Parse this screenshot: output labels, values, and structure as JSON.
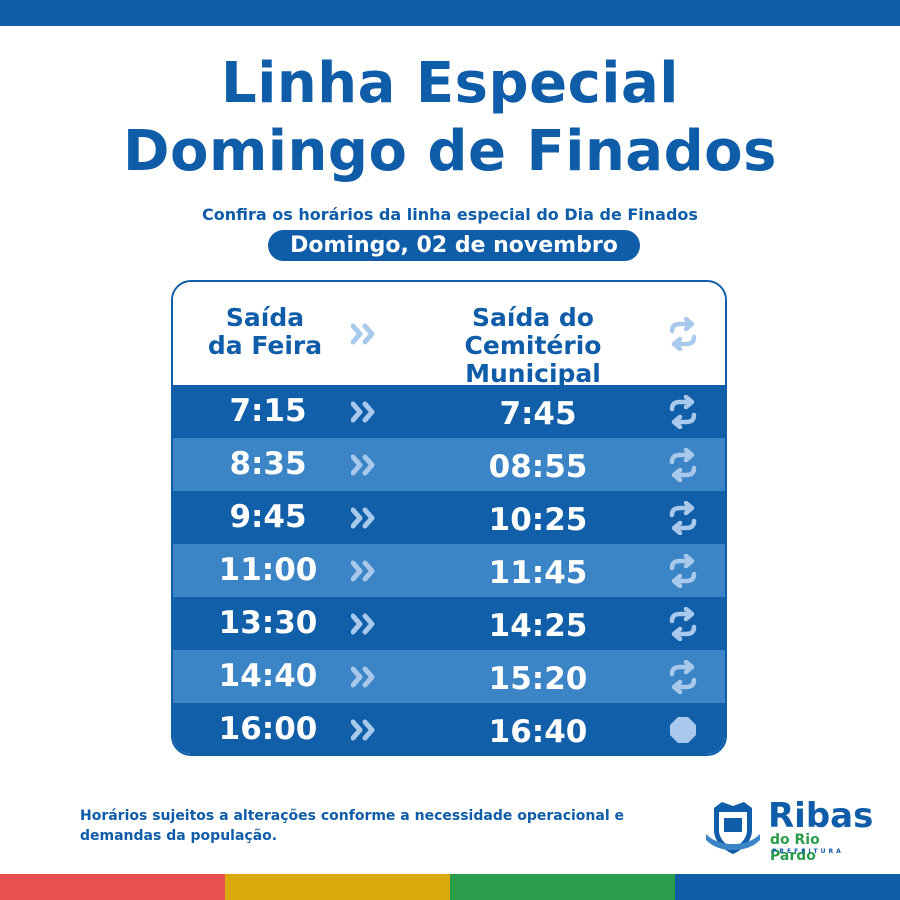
{
  "title_line1": "Linha Especial",
  "title_line2": "Domingo de Finados",
  "subtitle": "Confira os horários da linha especial do Dia de Finados",
  "date_label": "Domingo, 02 de novembro",
  "table": {
    "header_left_line1": "Saída",
    "header_left_line2": "da Feira",
    "header_right_line1": "Saída do",
    "header_right_line2": "Cemitério Municipal",
    "rows": [
      {
        "from": "7:15",
        "to": "7:45",
        "icon": "repeat-icon"
      },
      {
        "from": "8:35",
        "to": "08:55",
        "icon": "repeat-icon"
      },
      {
        "from": "9:45",
        "to": "10:25",
        "icon": "repeat-icon"
      },
      {
        "from": "11:00",
        "to": "11:45",
        "icon": "repeat-icon"
      },
      {
        "from": "13:30",
        "to": "14:25",
        "icon": "repeat-icon"
      },
      {
        "from": "14:40",
        "to": "15:20",
        "icon": "repeat-icon"
      },
      {
        "from": "16:00",
        "to": "16:40",
        "icon": "stop-icon"
      }
    ]
  },
  "footer_note": "Horários sujeitos a alterações conforme a necessidade operacional e demandas da população.",
  "logo": {
    "name": "Ribas",
    "subtitle": "do Rio Pardo",
    "subtitle2": "PREFEITURA",
    "icon": "city-crest-icon"
  },
  "colors": {
    "primary": "#0f5ca8",
    "row_dark": "#115fa9",
    "row_light": "#3b84c6",
    "icon_light": "#a9c9ec",
    "bottom_bar": [
      "#e8504f",
      "#dba90c",
      "#2a9d4b",
      "#0f5ca8"
    ]
  }
}
